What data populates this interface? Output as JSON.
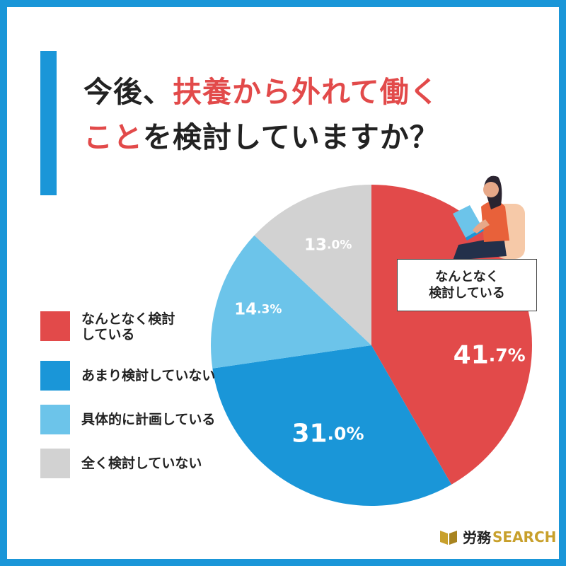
{
  "title": {
    "part1": "今後、",
    "part2": "扶養から外れて働く",
    "part3": "こと",
    "part4": "を検討していますか？"
  },
  "callout": {
    "line1": "なんとなく",
    "line2": "検討している"
  },
  "logo": {
    "jp": "労務",
    "en": "SEARCH"
  },
  "colors": {
    "red": "#e24a4a",
    "blue": "#1a96d8",
    "light_blue": "#6cc4ea",
    "gray": "#d2d2d2",
    "accent_gold": "#c8a02c"
  },
  "chart_data": {
    "type": "pie",
    "title": "今後、扶養から外れて働くことを検討していますか？",
    "start_angle": "12 o'clock",
    "direction": "clockwise",
    "legend_position": "left",
    "slices": [
      {
        "label": "なんとなく検討している",
        "legend_lines": [
          "なんとなく検討",
          "している"
        ],
        "value": 41.7,
        "value_text": "41.7%",
        "color": "#e24a4a"
      },
      {
        "label": "あまり検討していない",
        "legend_lines": [
          "あまり検討していない"
        ],
        "value": 31.0,
        "value_text": "31.0%",
        "color": "#1a96d8"
      },
      {
        "label": "具体的に計画している",
        "legend_lines": [
          "具体的に計画している"
        ],
        "value": 14.3,
        "value_text": "14.3%",
        "color": "#6cc4ea"
      },
      {
        "label": "全く検討していない",
        "legend_lines": [
          "全く検討していない"
        ],
        "value": 13.0,
        "value_text": "13.0%",
        "color": "#d2d2d2"
      }
    ]
  }
}
